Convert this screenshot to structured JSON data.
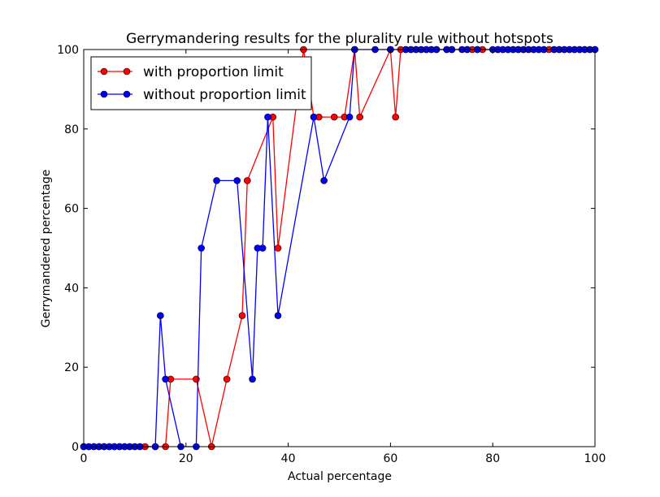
{
  "chart_data": {
    "type": "line",
    "title": "Gerrymandering results for the plurality rule without hotspots",
    "xlabel": "Actual percentage",
    "ylabel": "Gerrymandered percentage",
    "xlim": [
      0,
      100
    ],
    "ylim": [
      0,
      100
    ],
    "xticks": [
      0,
      20,
      40,
      60,
      80,
      100
    ],
    "yticks": [
      0,
      20,
      40,
      60,
      80,
      100
    ],
    "grid": false,
    "legend_position": "top-left",
    "series": [
      {
        "name": "with proportion limit",
        "color": "#ff0000",
        "marker": "circle",
        "x": [
          0,
          1,
          2,
          3,
          4,
          5,
          6,
          7,
          8,
          9,
          10,
          11,
          12,
          14,
          16,
          17,
          22,
          25,
          28,
          31,
          32,
          37,
          38,
          43,
          45,
          46,
          49,
          51,
          53,
          54,
          60,
          61,
          62,
          63,
          64,
          65,
          66,
          67,
          68,
          69,
          71,
          72,
          75,
          76,
          77,
          78,
          81,
          82,
          83,
          84,
          85,
          86,
          87,
          88,
          89,
          90,
          91,
          92,
          93,
          94,
          95,
          96,
          97,
          98,
          99,
          100
        ],
        "y": [
          0,
          0,
          0,
          0,
          0,
          0,
          0,
          0,
          0,
          0,
          0,
          0,
          0,
          0,
          0,
          17,
          17,
          0,
          17,
          33,
          67,
          83,
          50,
          100,
          83,
          83,
          83,
          83,
          100,
          83,
          100,
          83,
          100,
          100,
          100,
          100,
          100,
          100,
          100,
          100,
          100,
          100,
          100,
          100,
          100,
          100,
          100,
          100,
          100,
          100,
          100,
          100,
          100,
          100,
          100,
          100,
          100,
          100,
          100,
          100,
          100,
          100,
          100,
          100,
          100,
          100
        ]
      },
      {
        "name": "without proportion limit",
        "color": "#0000ff",
        "marker": "circle",
        "x": [
          0,
          1,
          2,
          3,
          4,
          5,
          6,
          7,
          8,
          9,
          10,
          11,
          14,
          15,
          16,
          19,
          22,
          23,
          26,
          30,
          33,
          34,
          35,
          36,
          38,
          45,
          47,
          52,
          53,
          57,
          60,
          63,
          64,
          65,
          66,
          67,
          68,
          69,
          71,
          72,
          74,
          75,
          77,
          80,
          81,
          82,
          83,
          84,
          85,
          86,
          87,
          88,
          89,
          90,
          92,
          93,
          94,
          95,
          96,
          97,
          98,
          99,
          100
        ],
        "y": [
          0,
          0,
          0,
          0,
          0,
          0,
          0,
          0,
          0,
          0,
          0,
          0,
          0,
          33,
          17,
          0,
          0,
          50,
          67,
          67,
          17,
          50,
          50,
          83,
          33,
          83,
          67,
          83,
          100,
          100,
          100,
          100,
          100,
          100,
          100,
          100,
          100,
          100,
          100,
          100,
          100,
          100,
          100,
          100,
          100,
          100,
          100,
          100,
          100,
          100,
          100,
          100,
          100,
          100,
          100,
          100,
          100,
          100,
          100,
          100,
          100,
          100,
          100
        ]
      }
    ]
  }
}
